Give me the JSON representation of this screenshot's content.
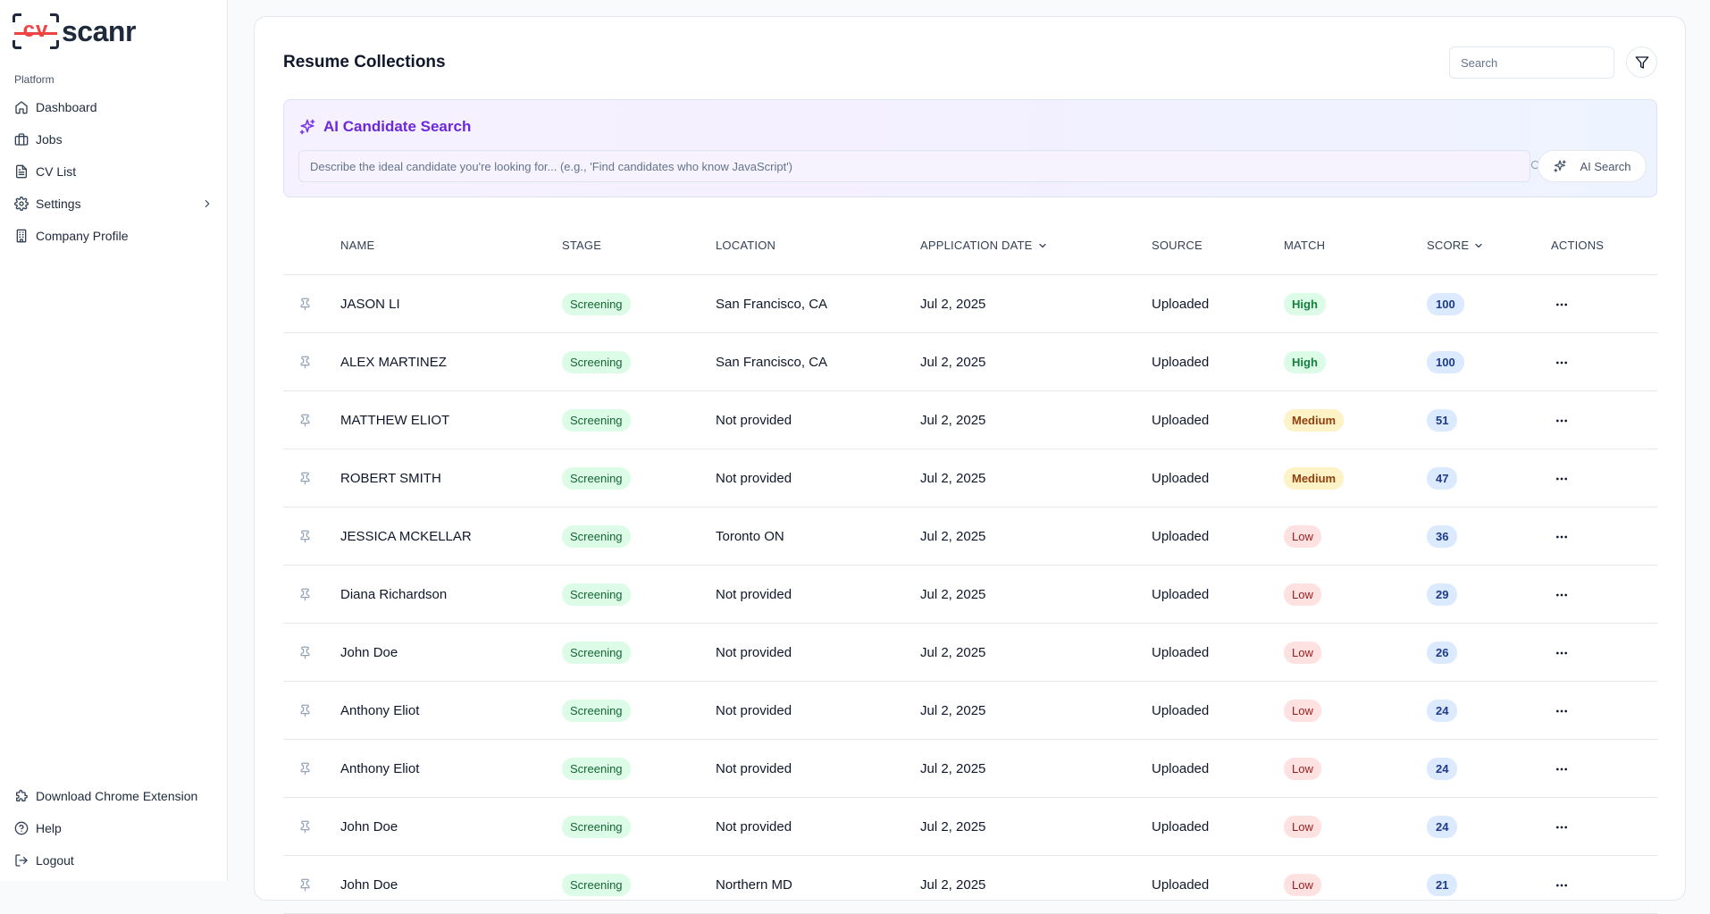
{
  "brand": {
    "logo_mark": "cv",
    "logo_word": "scanr",
    "accent": "#ef4444"
  },
  "sidebar": {
    "section_label": "Platform",
    "items": [
      {
        "label": "Dashboard",
        "icon": "home-icon"
      },
      {
        "label": "Jobs",
        "icon": "briefcase-icon"
      },
      {
        "label": "CV List",
        "icon": "file-icon"
      },
      {
        "label": "Settings",
        "icon": "gear-icon"
      },
      {
        "label": "Company Profile",
        "icon": "building-icon"
      }
    ],
    "bottom_items": [
      {
        "label": "Download Chrome Extension",
        "icon": "puzzle-icon"
      },
      {
        "label": "Help",
        "icon": "help-icon"
      },
      {
        "label": "Logout",
        "icon": "logout-icon"
      }
    ]
  },
  "main": {
    "title": "Resume Collections",
    "search_placeholder": "Search",
    "ai_search": {
      "title": "AI Candidate Search",
      "placeholder": "Describe the ideal candidate you're looking for... (e.g., 'Find candidates who know JavaScript')",
      "button_label": "AI Search"
    },
    "table": {
      "columns": {
        "name": "NAME",
        "stage": "STAGE",
        "location": "LOCATION",
        "date": "APPLICATION DATE",
        "source": "SOURCE",
        "match": "MATCH",
        "score": "SCORE",
        "actions": "ACTIONS"
      },
      "rows": [
        {
          "name": "JASON LI",
          "stage": "Screening",
          "location": "San Francisco, CA",
          "date": "Jul 2, 2025",
          "source": "Uploaded",
          "match": "High",
          "score": "100"
        },
        {
          "name": "ALEX MARTINEZ",
          "stage": "Screening",
          "location": "San Francisco, CA",
          "date": "Jul 2, 2025",
          "source": "Uploaded",
          "match": "High",
          "score": "100"
        },
        {
          "name": "MATTHEW ELIOT",
          "stage": "Screening",
          "location": "Not provided",
          "date": "Jul 2, 2025",
          "source": "Uploaded",
          "match": "Medium",
          "score": "51"
        },
        {
          "name": "ROBERT SMITH",
          "stage": "Screening",
          "location": "Not provided",
          "date": "Jul 2, 2025",
          "source": "Uploaded",
          "match": "Medium",
          "score": "47"
        },
        {
          "name": "JESSICA MCKELLAR",
          "stage": "Screening",
          "location": "Toronto ON",
          "date": "Jul 2, 2025",
          "source": "Uploaded",
          "match": "Low",
          "score": "36"
        },
        {
          "name": "Diana Richardson",
          "stage": "Screening",
          "location": "Not provided",
          "date": "Jul 2, 2025",
          "source": "Uploaded",
          "match": "Low",
          "score": "29"
        },
        {
          "name": "John Doe",
          "stage": "Screening",
          "location": "Not provided",
          "date": "Jul 2, 2025",
          "source": "Uploaded",
          "match": "Low",
          "score": "26"
        },
        {
          "name": "Anthony Eliot",
          "stage": "Screening",
          "location": "Not provided",
          "date": "Jul 2, 2025",
          "source": "Uploaded",
          "match": "Low",
          "score": "24"
        },
        {
          "name": "Anthony Eliot",
          "stage": "Screening",
          "location": "Not provided",
          "date": "Jul 2, 2025",
          "source": "Uploaded",
          "match": "Low",
          "score": "24"
        },
        {
          "name": "John Doe",
          "stage": "Screening",
          "location": "Not provided",
          "date": "Jul 2, 2025",
          "source": "Uploaded",
          "match": "Low",
          "score": "24"
        },
        {
          "name": "John Doe",
          "stage": "Screening",
          "location": "Northern MD",
          "date": "Jul 2, 2025",
          "source": "Uploaded",
          "match": "Low",
          "score": "21"
        }
      ]
    }
  }
}
